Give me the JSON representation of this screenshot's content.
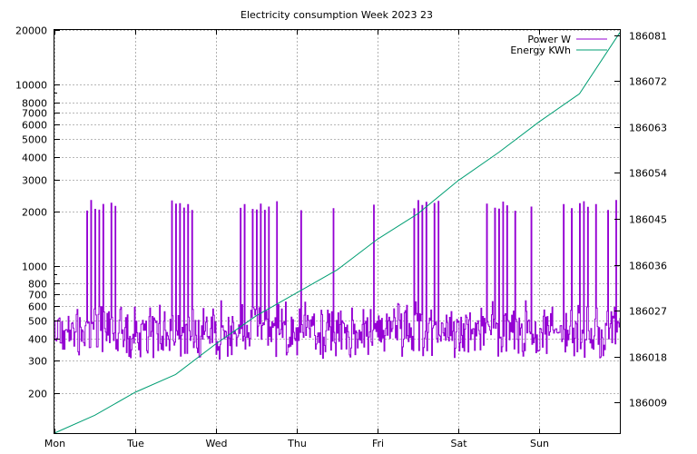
{
  "chart_data": {
    "type": "line",
    "title": "Electricity consumption Week 2023 23",
    "x_ticks": [
      "Mon",
      "Tue",
      "Wed",
      "Thu",
      "Fri",
      "Sat",
      "Sun"
    ],
    "xlim_days": [
      0,
      7
    ],
    "y_left": {
      "scale": "log",
      "range": [
        120,
        20000
      ],
      "ticks": [
        200,
        300,
        400,
        500,
        600,
        700,
        800,
        1000,
        2000,
        3000,
        4000,
        5000,
        6000,
        7000,
        8000,
        10000,
        20000
      ]
    },
    "y_right": {
      "scale": "linear",
      "range": [
        186003,
        186082
      ],
      "ticks": [
        186009,
        186018,
        186027,
        186036,
        186045,
        186054,
        186063,
        186072,
        186081
      ]
    },
    "grid": true,
    "legend_position": "top-right",
    "series": [
      {
        "name": "Power W",
        "axis": "left",
        "color": "#9400d3",
        "baseline_levels": [
          480,
          420,
          500,
          380,
          460,
          560,
          440,
          400,
          520,
          360
        ],
        "spike_days": [
          0.4,
          0.45,
          0.5,
          0.55,
          0.6,
          0.7,
          0.75,
          1.45,
          1.5,
          1.55,
          1.6,
          1.65,
          1.7,
          2.3,
          2.35,
          2.45,
          2.5,
          2.55,
          2.6,
          2.65,
          2.75,
          3.05,
          3.45,
          3.95,
          4.45,
          4.5,
          4.55,
          4.6,
          4.7,
          4.75,
          5.35,
          5.45,
          5.5,
          5.55,
          5.6,
          5.7,
          5.9,
          6.3,
          6.4,
          6.5,
          6.55,
          6.6,
          6.7,
          6.85,
          6.95
        ],
        "spike_value": 2100
      },
      {
        "name": "Energy KWh",
        "axis": "right",
        "color": "#009e73",
        "points": [
          {
            "x": 0.0,
            "y": 186003.0
          },
          {
            "x": 0.5,
            "y": 186006.5
          },
          {
            "x": 1.0,
            "y": 186011.0
          },
          {
            "x": 1.5,
            "y": 186014.5
          },
          {
            "x": 2.0,
            "y": 186020.5
          },
          {
            "x": 2.5,
            "y": 186026.0
          },
          {
            "x": 3.0,
            "y": 186030.5
          },
          {
            "x": 3.5,
            "y": 186035.0
          },
          {
            "x": 4.0,
            "y": 186041.0
          },
          {
            "x": 4.5,
            "y": 186046.0
          },
          {
            "x": 5.0,
            "y": 186052.5
          },
          {
            "x": 5.5,
            "y": 186058.0
          },
          {
            "x": 6.0,
            "y": 186064.0
          },
          {
            "x": 6.5,
            "y": 186069.5
          },
          {
            "x": 7.0,
            "y": 186081.5
          }
        ]
      }
    ]
  }
}
